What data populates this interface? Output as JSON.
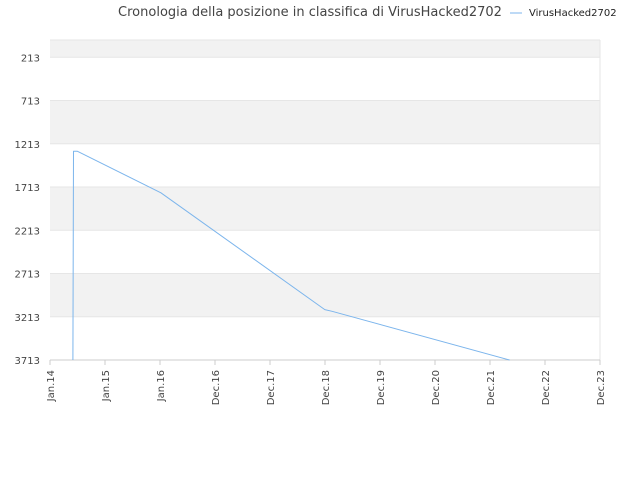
{
  "chart_data": {
    "type": "line",
    "title": "Cronologia della posizione in classifica di VirusHacked2702",
    "xlabel": "",
    "ylabel": "",
    "y_inverted": true,
    "ylim": [
      3713,
      13
    ],
    "y_ticks": [
      213,
      713,
      1213,
      1713,
      2213,
      2713,
      3213,
      3713
    ],
    "x_ticks": [
      "Jan.14",
      "Jan.15",
      "Jan.16",
      "Dec.16",
      "Dec.17",
      "Dec.18",
      "Dec.19",
      "Dec.20",
      "Dec.21",
      "Dec.22",
      "Dec.23"
    ],
    "grid": true,
    "legend_position": "top-right",
    "series": [
      {
        "name": "VirusHacked2702",
        "color": "#7cb5ec",
        "points": [
          {
            "x": "2014-06-01",
            "y": 3713
          },
          {
            "x": "2014-06-05",
            "y": 1300
          },
          {
            "x": "2014-07-01",
            "y": 1300
          },
          {
            "x": "2016-01-01",
            "y": 1780
          },
          {
            "x": "2018-12-15",
            "y": 3130
          },
          {
            "x": "2019-02-01",
            "y": 3150
          },
          {
            "x": "2022-04-15",
            "y": 3713
          }
        ]
      }
    ]
  }
}
